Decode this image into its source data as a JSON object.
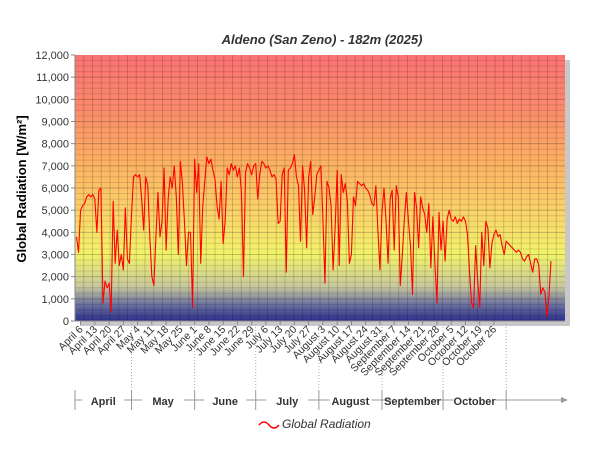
{
  "chart_data": {
    "type": "line",
    "title": "Aldeno (San Zeno) - 182m (2025)",
    "ylabel": "Global Radiation [W/m²]",
    "xlabel": "",
    "ylim": [
      0,
      12000
    ],
    "y_ticks": [
      "0",
      "1,000",
      "2,000",
      "3,000",
      "4,000",
      "5,000",
      "6,000",
      "7,000",
      "8,000",
      "9,000",
      "10,000",
      "11,000",
      "12,000"
    ],
    "x_tick_labels": [
      "April 6",
      "April 13",
      "April 20",
      "April 27",
      "May 4",
      "May 11",
      "May 18",
      "May 25",
      "June 1",
      "June 8",
      "June 15",
      "June 22",
      "June 29",
      "July 6",
      "July 13",
      "July 20",
      "July 27",
      "August 3",
      "August 10",
      "August 17",
      "August 24",
      "August 31",
      "September 7",
      "September 14",
      "September 21",
      "September 28",
      "October 5",
      "October 12",
      "October 19",
      "October 26"
    ],
    "months": [
      "April",
      "May",
      "June",
      "July",
      "August",
      "September",
      "October"
    ],
    "grid": true,
    "legend_position": "bottom",
    "background": "gradient: navy at 0, yellow around 3,000, orange around 7,000, red at 12,000",
    "line_color": "#ff0000",
    "series": [
      {
        "name": "Global Radiation",
        "start": "April 4",
        "values": [
          3800,
          3100,
          5000,
          5200,
          5300,
          5600,
          5700,
          5600,
          5700,
          5500,
          4000,
          5900,
          6000,
          800,
          1800,
          1500,
          1700,
          400,
          5400,
          2600,
          4100,
          2500,
          3000,
          2300,
          5100,
          2800,
          2600,
          4800,
          6500,
          6600,
          6500,
          6600,
          5500,
          4100,
          6500,
          6100,
          3800,
          2000,
          1600,
          3800,
          5800,
          3800,
          4500,
          6900,
          3200,
          5500,
          6500,
          6000,
          7000,
          5600,
          3000,
          7200,
          6200,
          4500,
          2500,
          4000,
          4000,
          600,
          7300,
          5800,
          7100,
          2600,
          5200,
          6300,
          7400,
          7100,
          7300,
          6800,
          6400,
          5200,
          4600,
          6300,
          3500,
          4500,
          6900,
          6600,
          7100,
          6800,
          7000,
          6500,
          6900,
          5800,
          2000,
          6700,
          7100,
          6900,
          6600,
          7000,
          7100,
          5500,
          6600,
          7200,
          7100,
          6900,
          7000,
          6800,
          6500,
          6600,
          6400,
          4400,
          4500,
          6600,
          6900,
          2200,
          6800,
          6900,
          7100,
          7500,
          6500,
          6100,
          3600,
          7000,
          5900,
          3300,
          6500,
          7200,
          4800,
          5600,
          6600,
          6800,
          7000,
          4600,
          1700,
          6300,
          6000,
          5200,
          2300,
          4200,
          6800,
          2500,
          6600,
          5800,
          6200,
          5400,
          2600,
          3000,
          5600,
          5200,
          6300,
          6200,
          6100,
          6200,
          6000,
          5900,
          5700,
          5300,
          5200,
          6100,
          4100,
          2300,
          4900,
          6000,
          4500,
          2600,
          5500,
          5900,
          3200,
          6100,
          5600,
          1600,
          3000,
          4600,
          5800,
          4500,
          3400,
          1200,
          5800,
          5100,
          3300,
          5600,
          5100,
          4800,
          4000,
          5300,
          2400,
          4700,
          2600,
          800,
          4900,
          3200,
          4500,
          2700,
          4600,
          5000,
          4600,
          4500,
          4700,
          4400,
          4600,
          4500,
          4700,
          4500,
          3900,
          2200,
          800,
          600,
          3400,
          1800,
          600,
          4000,
          2500,
          4500,
          4200,
          2400,
          3500,
          3900,
          4100,
          3800,
          3900,
          3400,
          3000,
          3600,
          3500,
          3400,
          3300,
          3200,
          3100,
          3200,
          3100,
          2800,
          2700,
          2900,
          3000,
          2600,
          2200,
          2800,
          2800,
          2500,
          1200,
          1500,
          1300,
          200,
          1100,
          2700
        ]
      }
    ]
  }
}
